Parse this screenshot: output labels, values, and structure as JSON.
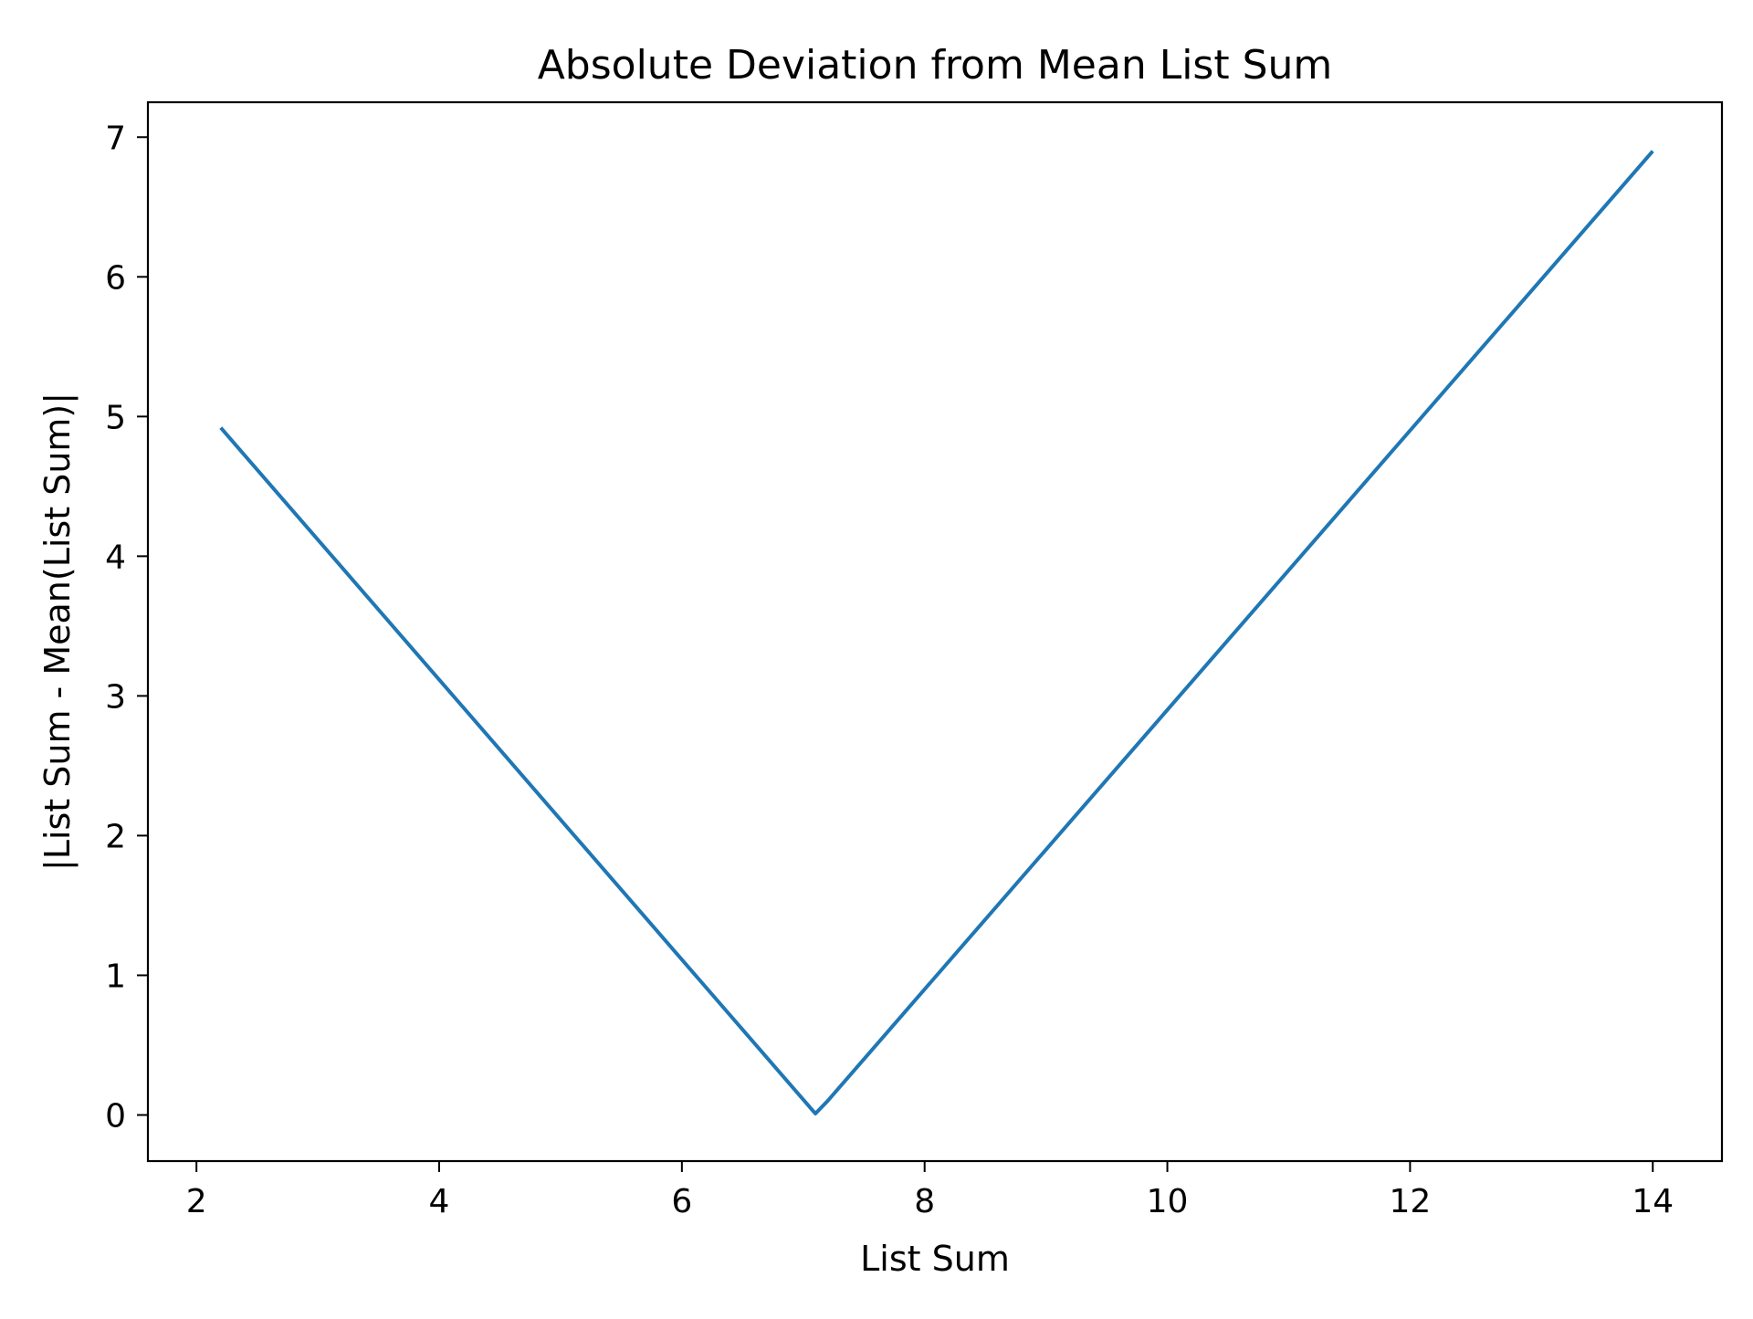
{
  "chart_data": {
    "type": "line",
    "title": "Absolute Deviation from Mean List Sum",
    "xlabel": "List Sum",
    "ylabel": "|List Sum - Mean(List Sum)|",
    "xlim": [
      1.6,
      14.57
    ],
    "ylim": [
      -0.33,
      7.25
    ],
    "xticks": [
      2,
      4,
      6,
      8,
      10,
      12,
      14
    ],
    "yticks": [
      0,
      1,
      2,
      3,
      4,
      5,
      6,
      7
    ],
    "grid": false,
    "series": [
      {
        "color": "#1f77b4",
        "x": [
          2.2,
          7.1,
          7.2,
          14.0
        ],
        "y": [
          4.92,
          0.01,
          0.1,
          6.9
        ]
      }
    ]
  }
}
